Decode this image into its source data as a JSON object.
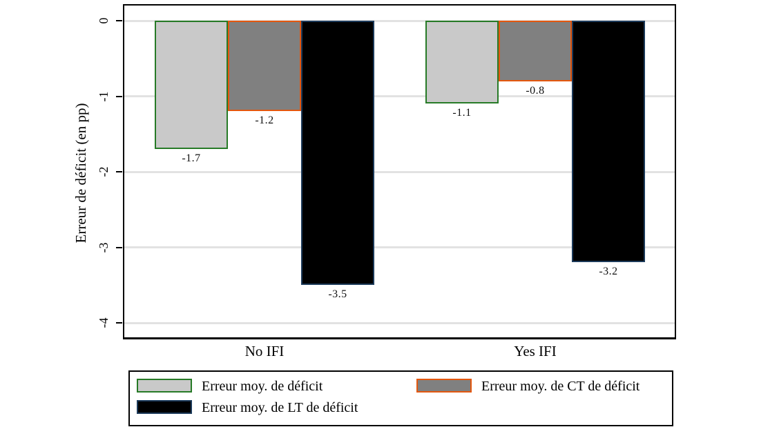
{
  "chart_data": {
    "type": "bar",
    "title": "",
    "xlabel": "",
    "ylabel": "Erreur de déficit (en pp)",
    "ylim": [
      -4,
      0
    ],
    "yticks": [
      0,
      -1,
      -2,
      -3,
      -4
    ],
    "ytick_labels": [
      "0",
      "-1",
      "-2",
      "-3",
      "-4"
    ],
    "categories": [
      "No IFI",
      "Yes IFI"
    ],
    "series": [
      {
        "name": "Erreur moy. de déficit",
        "values": [
          -1.7,
          -1.1
        ],
        "value_labels": [
          "-1.7",
          "-1.1"
        ],
        "fill": "#c9c9c9",
        "border": "#267a26"
      },
      {
        "name": "Erreur moy. de CT de déficit",
        "values": [
          -1.2,
          -0.8
        ],
        "value_labels": [
          "-1.2",
          "-0.8"
        ],
        "fill": "#808080",
        "border": "#e4570e"
      },
      {
        "name": "Erreur moy. de LT de déficit",
        "values": [
          -3.5,
          -3.2
        ],
        "value_labels": [
          "-3.5",
          "-3.2"
        ],
        "fill": "#000000",
        "border": "#1c3a5a"
      }
    ],
    "grid": true,
    "gridline_color": "#e2e2e2",
    "legend_position": "bottom",
    "colors": {
      "axis": "#000000",
      "background": "#ffffff",
      "value_label_text": "#111111"
    }
  }
}
